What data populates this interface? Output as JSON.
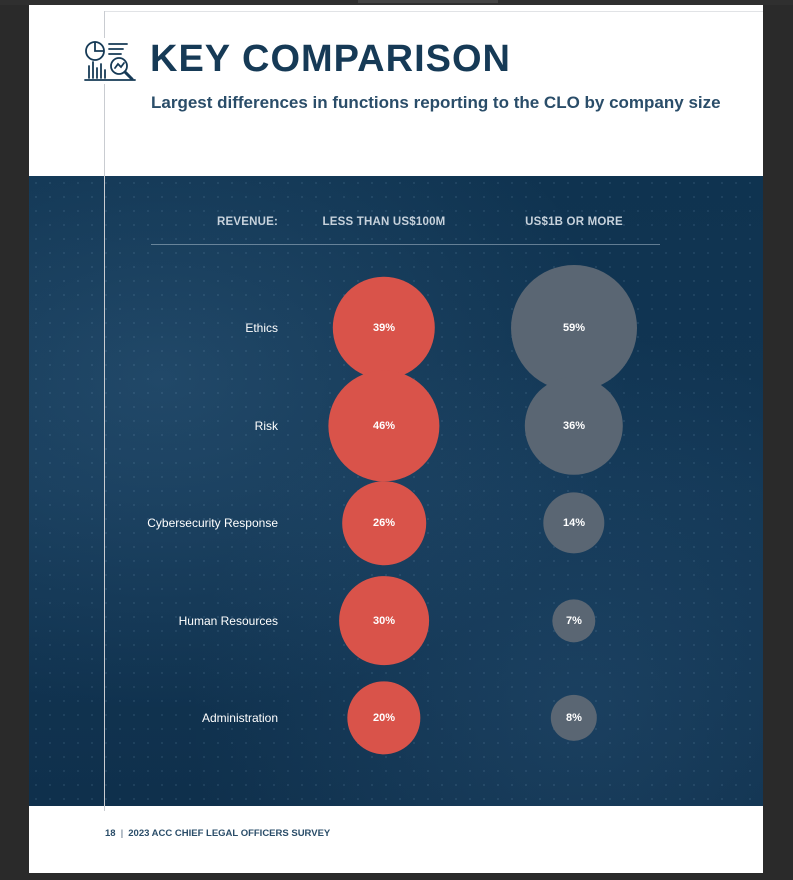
{
  "header": {
    "title": "KEY COMPARISON",
    "subtitle": "Largest differences in functions reporting to the CLO by company size",
    "icon": "analytics-chart-icon"
  },
  "footer": {
    "page_number": "18",
    "separator": "|",
    "publication": "2023 ACC CHIEF LEGAL OFFICERS SURVEY"
  },
  "colors": {
    "navy": "#163a56",
    "panel": "#123654",
    "small_company": "#d9534a",
    "large_company": "#5a6673"
  },
  "chart_data": {
    "type": "bubble",
    "row_header": "REVENUE:",
    "series": [
      {
        "name": "LESS THAN US$100M",
        "color": "#d9534a",
        "values": [
          39,
          46,
          26,
          30,
          20
        ]
      },
      {
        "name": "US$1B OR MORE",
        "color": "#5a6673",
        "values": [
          59,
          36,
          14,
          7,
          8
        ]
      }
    ],
    "categories": [
      "Ethics",
      "Risk",
      "Cybersecurity Response",
      "Human Resources",
      "Administration"
    ],
    "value_labels": [
      [
        "39%",
        "46%",
        "26%",
        "30%",
        "20%"
      ],
      [
        "59%",
        "36%",
        "14%",
        "7%",
        "8%"
      ]
    ],
    "unit": "%"
  }
}
